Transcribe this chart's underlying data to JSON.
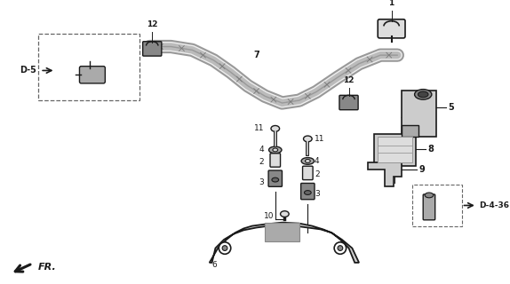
{
  "bg_color": "#ffffff",
  "fig_width": 5.74,
  "fig_height": 3.2,
  "dpi": 100,
  "line_color": "#1a1a1a",
  "part_color": "#cccccc",
  "dark_part": "#888888",
  "light_part": "#dddddd"
}
